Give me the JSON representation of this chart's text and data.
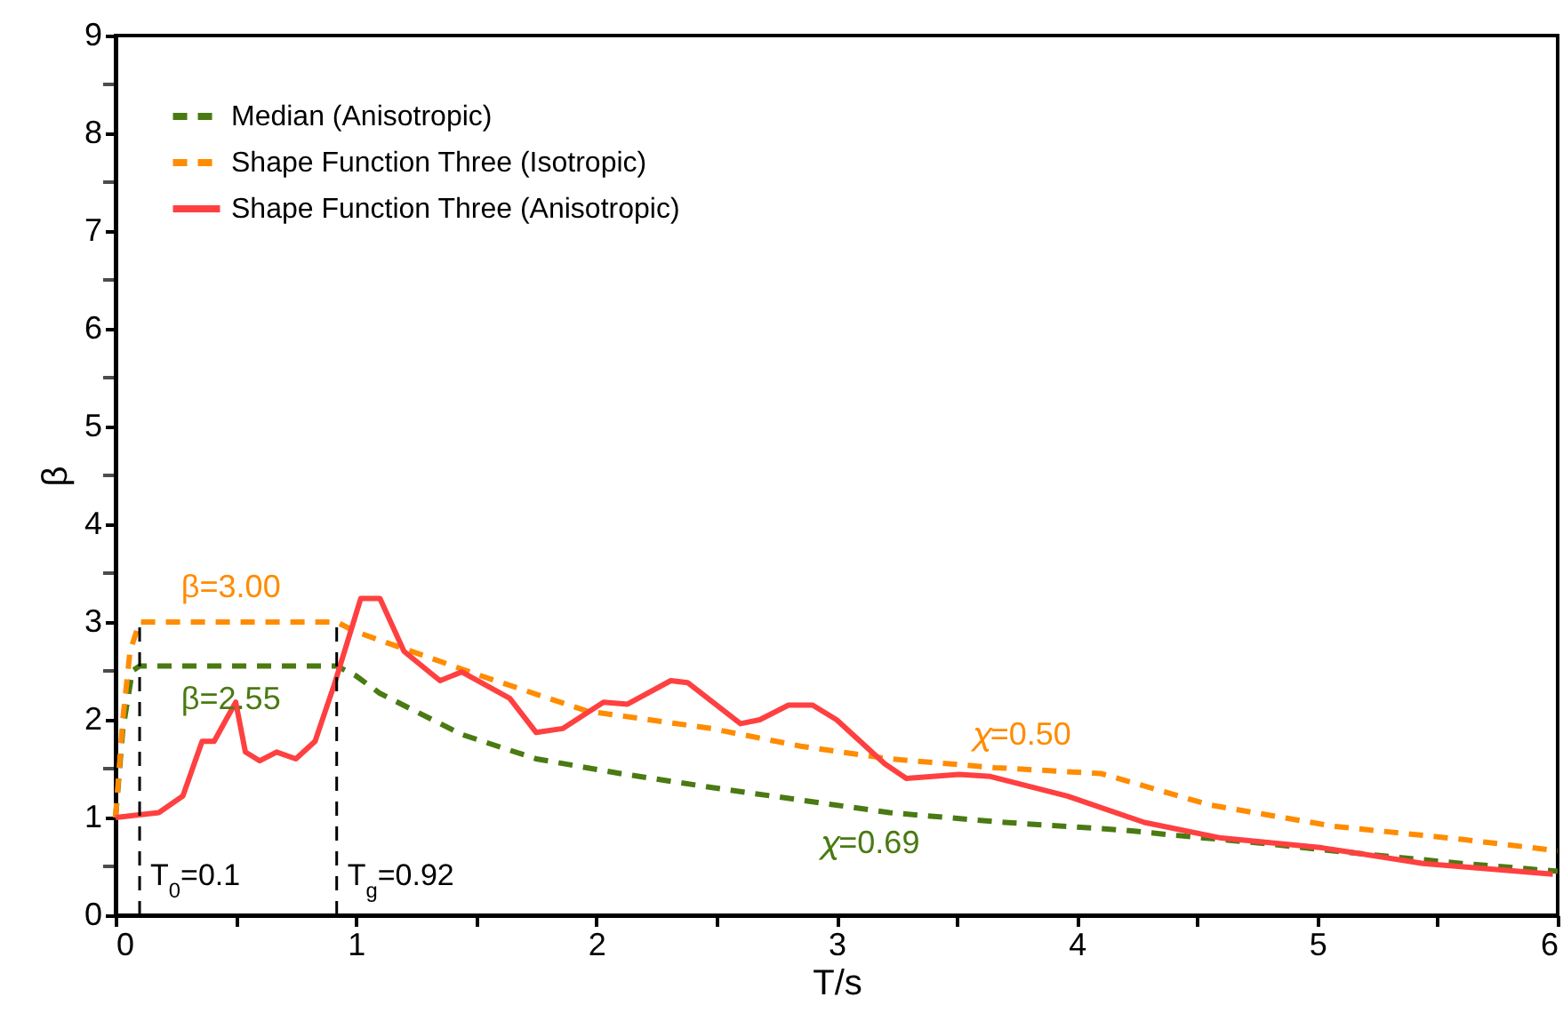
{
  "chart_data": {
    "type": "line",
    "xlabel": "T/s",
    "ylabel": "β",
    "xlim": [
      0,
      6
    ],
    "ylim": [
      0,
      9
    ],
    "xticks": [
      0,
      {
        "value": 0.5,
        "label": null
      },
      1,
      {
        "value": 1.5,
        "label": null
      },
      2,
      {
        "value": 2.5,
        "label": null
      },
      3,
      {
        "value": 3.5,
        "label": null
      },
      4,
      {
        "value": 4.5,
        "label": null
      },
      5,
      {
        "value": 5.5,
        "label": null
      },
      6
    ],
    "yticks": [
      0,
      {
        "value": 0.5,
        "label": null
      },
      1,
      {
        "value": 1.5,
        "label": null
      },
      2,
      {
        "value": 2.5,
        "label": null
      },
      3,
      {
        "value": 3.5,
        "label": null
      },
      4,
      {
        "value": 4.5,
        "label": null
      },
      5,
      {
        "value": 5.5,
        "label": null
      },
      6,
      {
        "value": 6.5,
        "label": null
      },
      7,
      {
        "value": 7.5,
        "label": null
      },
      8,
      {
        "value": 8.5,
        "label": null
      },
      9
    ],
    "grid": false,
    "legend": "top left",
    "series": [
      {
        "name": "Median (Anisotropic)",
        "color": "#4a7a12",
        "line_style": "dashed",
        "x": [
          0,
          0.03,
          0.07,
          0.1,
          0.92,
          1.0,
          1.1,
          1.44,
          1.75,
          2.1,
          2.5,
          3.22,
          3.7,
          4.2,
          4.4,
          4.8,
          5.14,
          5.6,
          6.0
        ],
        "values": [
          1.0,
          1.9,
          2.5,
          2.55,
          2.55,
          2.45,
          2.27,
          1.85,
          1.6,
          1.45,
          1.3,
          1.05,
          0.95,
          0.87,
          0.82,
          0.73,
          0.64,
          0.53,
          0.45
        ]
      },
      {
        "name": "Shape Function Three (Isotropic)",
        "color": "#ff8c00",
        "line_style": "dashed",
        "x": [
          0,
          0.03,
          0.06,
          0.1,
          0.92,
          1.0,
          1.52,
          1.96,
          2.48,
          2.85,
          3.22,
          3.66,
          4.1,
          4.55,
          5.07,
          5.59,
          6.0
        ],
        "values": [
          1.0,
          2.0,
          2.7,
          3.0,
          3.0,
          2.9,
          2.45,
          2.09,
          1.91,
          1.73,
          1.6,
          1.51,
          1.45,
          1.13,
          0.91,
          0.78,
          0.66
        ]
      },
      {
        "name": "Shape Function Three (Anisotropic)",
        "color": "#ff4040",
        "line_style": "solid",
        "x": [
          0,
          0.18,
          0.28,
          0.36,
          0.41,
          0.5,
          0.54,
          0.6,
          0.67,
          0.75,
          0.83,
          0.91,
          1.02,
          1.1,
          1.2,
          1.35,
          1.44,
          1.64,
          1.75,
          1.86,
          2.03,
          2.13,
          2.31,
          2.38,
          2.6,
          2.68,
          2.8,
          2.9,
          3.0,
          3.2,
          3.29,
          3.51,
          3.64,
          3.96,
          4.28,
          4.6,
          5.02,
          5.44,
          5.98
        ],
        "values": [
          1.0,
          1.05,
          1.22,
          1.78,
          1.78,
          2.18,
          1.67,
          1.58,
          1.67,
          1.6,
          1.78,
          2.36,
          3.24,
          3.24,
          2.7,
          2.4,
          2.49,
          2.22,
          1.87,
          1.91,
          2.18,
          2.16,
          2.4,
          2.38,
          1.96,
          2.0,
          2.15,
          2.15,
          2.0,
          1.55,
          1.4,
          1.44,
          1.42,
          1.22,
          0.95,
          0.79,
          0.69,
          0.53,
          0.42
        ]
      }
    ],
    "ref_lines": [
      {
        "axis": "x",
        "value": 0.1,
        "label": "T$_{0}$=0.1",
        "color": "#000000",
        "line_style": "dashed"
      },
      {
        "axis": "x",
        "value": 0.92,
        "label": "T$_{g}$=0.92",
        "color": "#000000",
        "line_style": "dashed"
      }
    ],
    "annotations": [
      {
        "text": "β=3.00",
        "x": 0.48,
        "y": 3.0
      },
      {
        "text": "β=2.55",
        "x": 0.48,
        "y": 2.55
      },
      {
        "text": "𝜒=0.50",
        "x": 3.77,
        "y": 1.49
      },
      {
        "text": "𝜒=0.69",
        "x": 3.14,
        "y": 1.07
      }
    ]
  }
}
